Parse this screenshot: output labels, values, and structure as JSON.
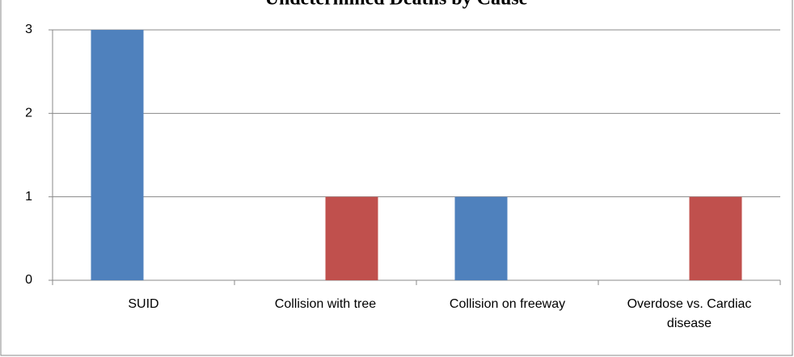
{
  "chart_data": {
    "type": "bar",
    "title": "Undetermined Deaths by Cause",
    "categories": [
      "SUID",
      "Collision with tree",
      "Collision on freeway",
      "Overdose vs. Cardiac disease"
    ],
    "series": [
      {
        "color": "#4f81bd",
        "values": [
          3,
          0,
          1,
          0
        ]
      },
      {
        "color": "#c0504d",
        "values": [
          0,
          1,
          0,
          1
        ]
      }
    ],
    "ylim": [
      0,
      3
    ],
    "yticks": [
      0,
      1,
      2,
      3
    ],
    "grid": true
  }
}
